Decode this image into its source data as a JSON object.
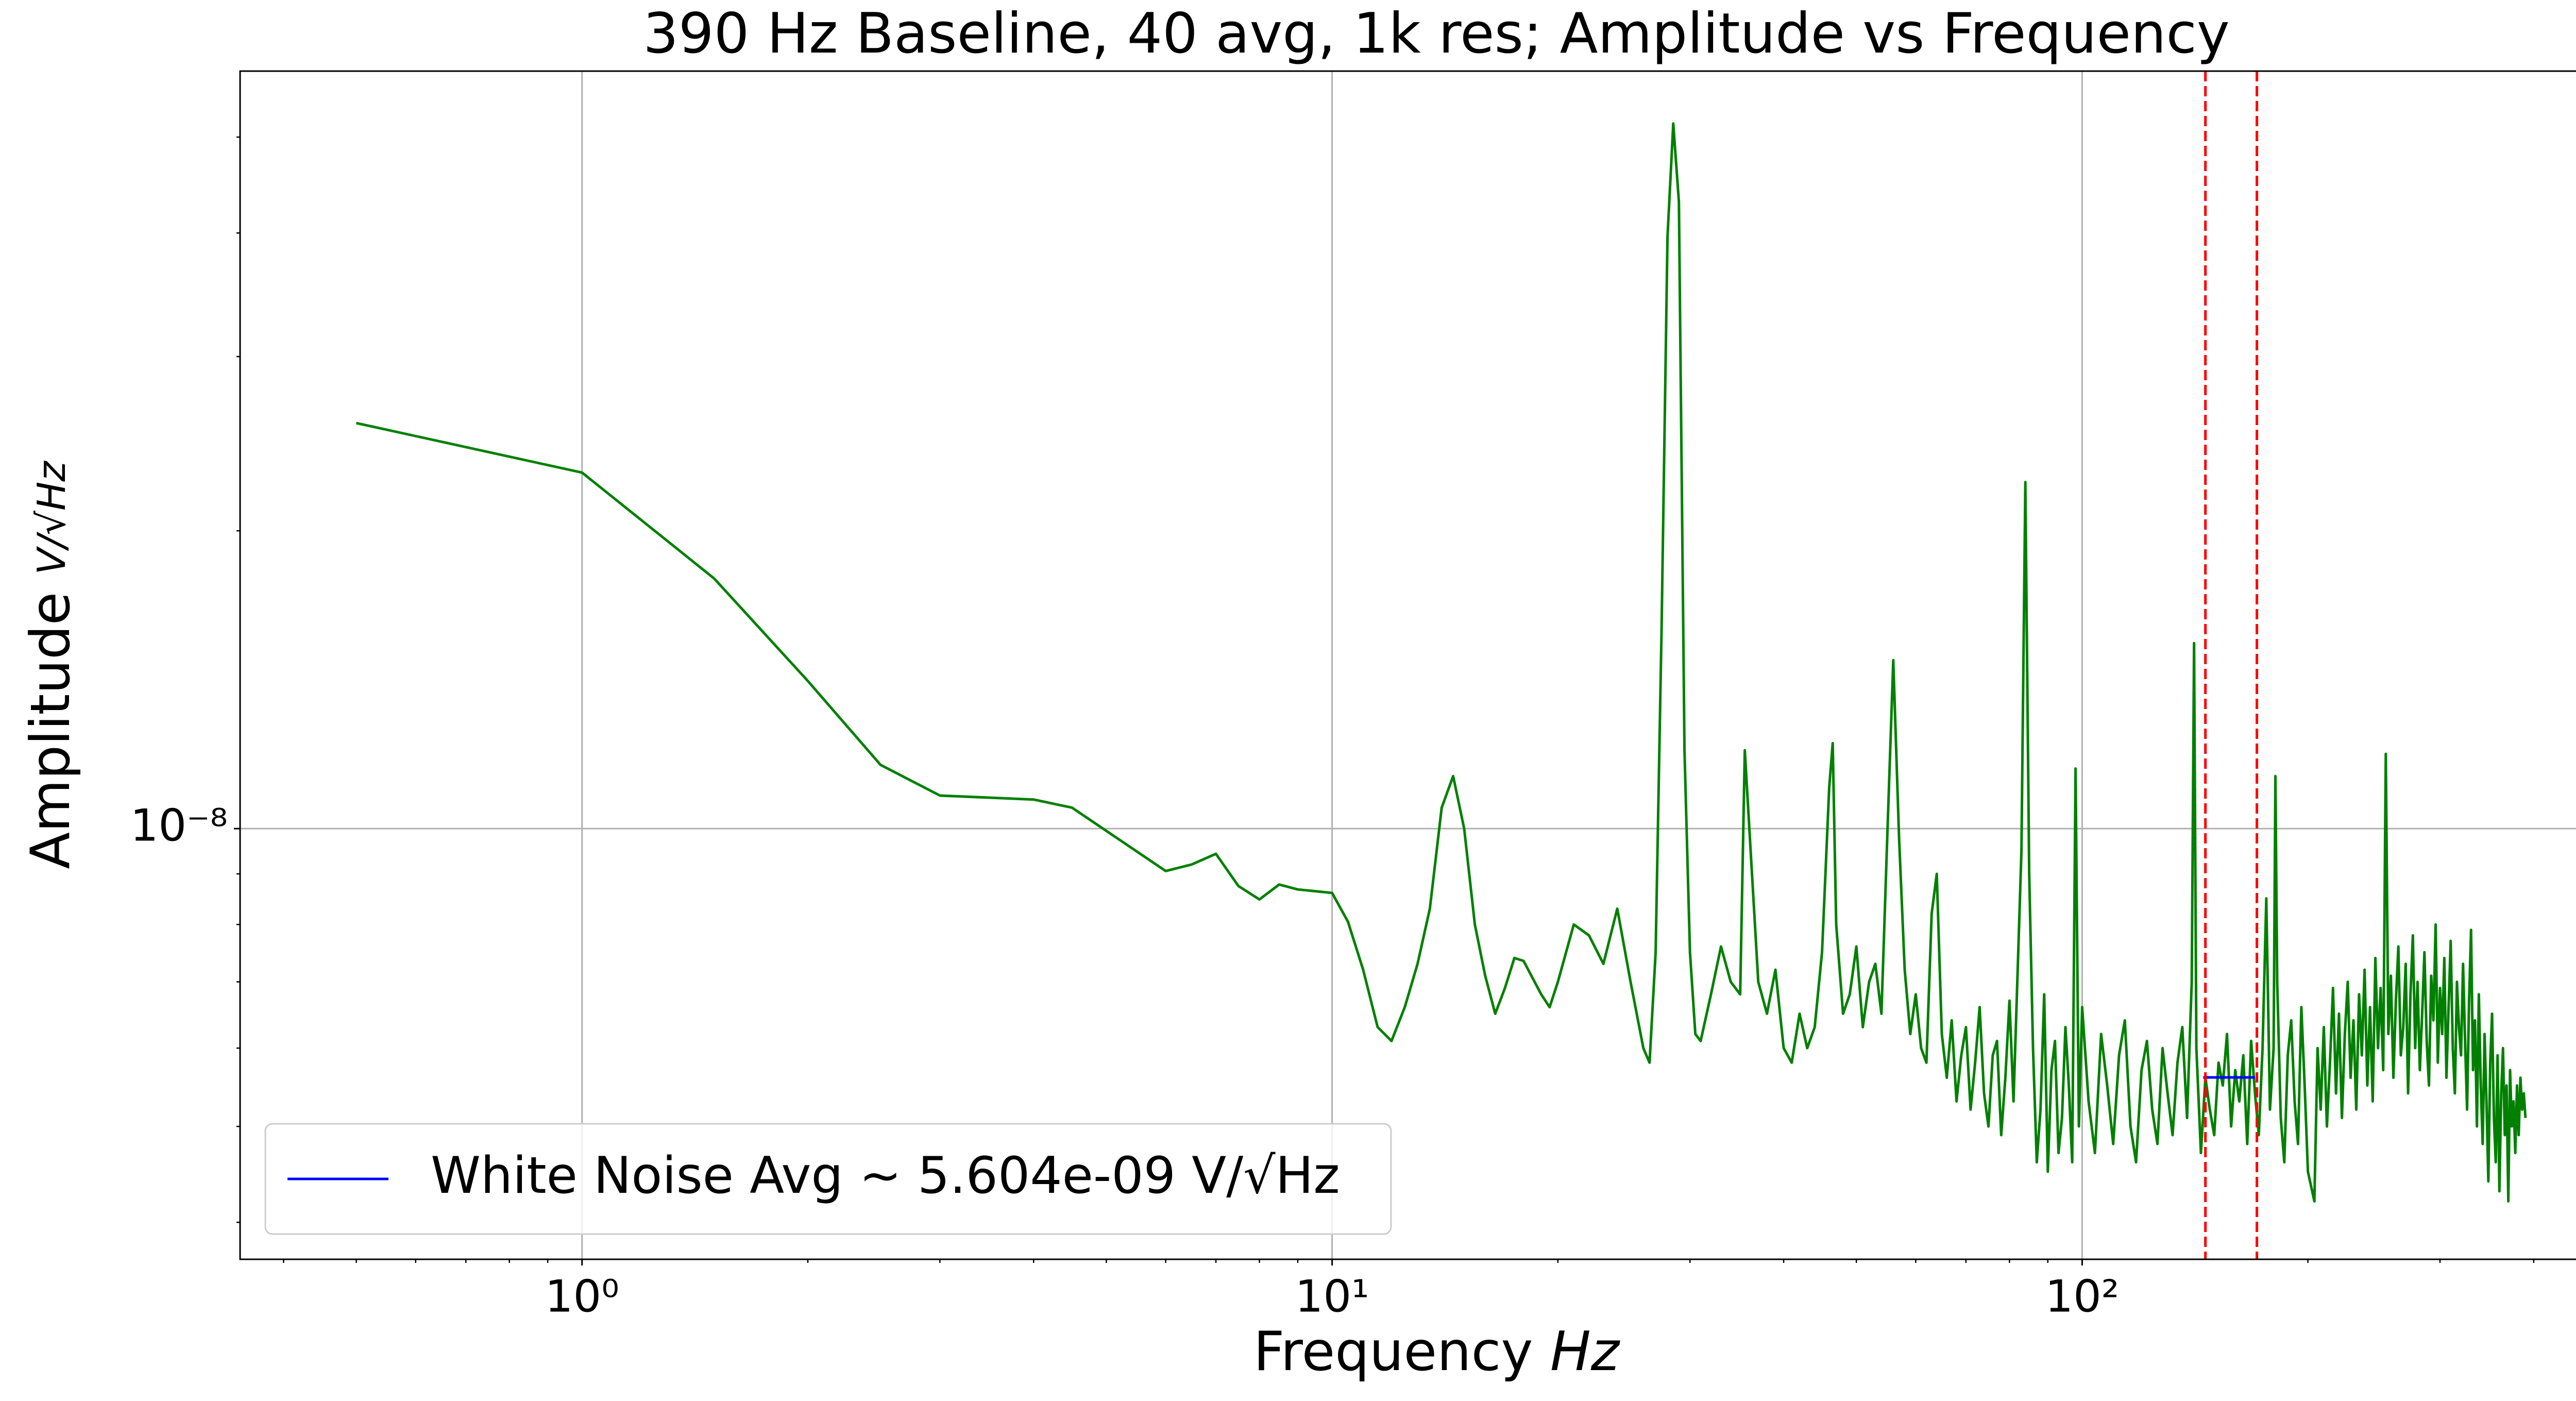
{
  "chart_data": {
    "type": "line",
    "title": "390 Hz Baseline, 40 avg, 1k res; Amplitude vs Frequency",
    "xlabel": "Frequency",
    "xlabel_unit": "Hz",
    "ylabel": "Amplitude",
    "ylabel_unit": "V/√Hz",
    "xscale": "log",
    "yscale": "log",
    "xlim": [
      0.35,
      542
    ],
    "ylim": [
      3.67e-09,
      5.83e-08
    ],
    "xticks": [
      {
        "value": 1,
        "label": "10⁰"
      },
      {
        "value": 10,
        "label": "10¹"
      },
      {
        "value": 100,
        "label": "10²"
      }
    ],
    "yticks": [
      {
        "value": 1e-08,
        "label": "10⁻⁸"
      }
    ],
    "xminor_ticks": [
      0.4,
      0.5,
      0.6,
      0.7,
      0.8,
      0.9,
      2,
      3,
      4,
      5,
      6,
      7,
      8,
      9,
      20,
      30,
      40,
      50,
      60,
      70,
      80,
      90,
      200,
      300,
      400,
      500
    ],
    "yminor_ticks": [
      4e-09,
      5e-09,
      6e-09,
      7e-09,
      8e-09,
      9e-09,
      2e-08,
      3e-08,
      4e-08,
      5e-08
    ],
    "grid": true,
    "legend_loc": "lower left",
    "vlines": [
      146,
      171
    ],
    "vline_color": "#ff0000",
    "series": [
      {
        "color": "#008000",
        "x": [
          0.5,
          1,
          1.5,
          2,
          2.5,
          3,
          4,
          4.5,
          6,
          6.5,
          7,
          7.5,
          8,
          8.5,
          9,
          10,
          10.5,
          11,
          11.5,
          12,
          12.5,
          13,
          13.5,
          14,
          14.5,
          15,
          15.5,
          16,
          16.5,
          17,
          17.5,
          18,
          19,
          19.5,
          20,
          21,
          22,
          23,
          24,
          25,
          26,
          26.5,
          27,
          27.5,
          28,
          28.5,
          29,
          29.5,
          30,
          30.5,
          31,
          32,
          33,
          34,
          35,
          35.5,
          37,
          38,
          39,
          40,
          41,
          42,
          43,
          44,
          45,
          46,
          46.5,
          47,
          48,
          49,
          50,
          51,
          52,
          53,
          54,
          55,
          56,
          57,
          58,
          59,
          60,
          61,
          62,
          63,
          64,
          65,
          66,
          67,
          68,
          69,
          70,
          71,
          72,
          73,
          74,
          75,
          76,
          77,
          78,
          79,
          80,
          81,
          82,
          83,
          84,
          85,
          86,
          87,
          88,
          89,
          90,
          91,
          92,
          93,
          94,
          95,
          96,
          97,
          98,
          99,
          100,
          102,
          104,
          106,
          108,
          110,
          112,
          114,
          116,
          118,
          120,
          122,
          124,
          126,
          128,
          130,
          132,
          134,
          136,
          138,
          140,
          141,
          142,
          144,
          146,
          148,
          150,
          152,
          154,
          156,
          158,
          160,
          162,
          164,
          166,
          168,
          170,
          172,
          174,
          176,
          178,
          180,
          181,
          182,
          184,
          186,
          188,
          190,
          192,
          194,
          196,
          198,
          200,
          204,
          206,
          208,
          210,
          212,
          214,
          216,
          218,
          220,
          222,
          224,
          226,
          228,
          230,
          232,
          234,
          236,
          238,
          240,
          242,
          244,
          246,
          248,
          250,
          252,
          254,
          256,
          258,
          260,
          262,
          264,
          266,
          268,
          270,
          272,
          274,
          276,
          278,
          280,
          282,
          284,
          286,
          288,
          290,
          292,
          294,
          296,
          298,
          300,
          302,
          304,
          306,
          308,
          310,
          312,
          314,
          316,
          318,
          320,
          322,
          324,
          326,
          328,
          330,
          332,
          334,
          336,
          338,
          340,
          342,
          344,
          346,
          348,
          350,
          352,
          354,
          356,
          358,
          360,
          362,
          364,
          366,
          368,
          370,
          372,
          374,
          376,
          378,
          380,
          382,
          384,
          386,
          388,
          390
        ],
        "values": [
          2.57e-08,
          2.29e-08,
          1.79e-08,
          1.41e-08,
          1.16e-08,
          1.08e-08,
          1.07e-08,
          1.05e-08,
          9.06e-09,
          9.2e-09,
          9.43e-09,
          8.75e-09,
          8.48e-09,
          8.78e-09,
          8.68e-09,
          8.61e-09,
          8.05e-09,
          7.2e-09,
          6.3e-09,
          6.1e-09,
          6.6e-09,
          7.3e-09,
          8.3e-09,
          1.05e-08,
          1.13e-08,
          1e-08,
          8e-09,
          7.1e-09,
          6.5e-09,
          6.9e-09,
          7.4e-09,
          7.35e-09,
          6.8e-09,
          6.6e-09,
          7e-09,
          8e-09,
          7.8e-09,
          7.3e-09,
          8.3e-09,
          7e-09,
          6e-09,
          5.8e-09,
          7.5e-09,
          1.6e-08,
          3.96e-08,
          5.16e-08,
          4.3e-08,
          1.2e-08,
          7.5e-09,
          6.2e-09,
          6.1e-09,
          6.8e-09,
          7.6e-09,
          7e-09,
          6.8e-09,
          1.2e-08,
          7e-09,
          6.5e-09,
          7.2e-09,
          6e-09,
          5.8e-09,
          6.5e-09,
          6e-09,
          6.3e-09,
          7.5e-09,
          1.1e-08,
          1.22e-08,
          8e-09,
          6.5e-09,
          6.8e-09,
          7.6e-09,
          6.3e-09,
          7e-09,
          7.3e-09,
          6.5e-09,
          9.9e-09,
          1.48e-08,
          9.8e-09,
          7.2e-09,
          6.2e-09,
          6.8e-09,
          6e-09,
          5.8e-09,
          8.2e-09,
          9e-09,
          6.2e-09,
          5.6e-09,
          6.4e-09,
          5.3e-09,
          5.9e-09,
          6.3e-09,
          5.2e-09,
          5.8e-09,
          6.6e-09,
          5.4e-09,
          5e-09,
          5.9e-09,
          6.1e-09,
          4.9e-09,
          5.6e-09,
          6.7e-09,
          5.3e-09,
          7.1e-09,
          9.5e-09,
          2.24e-08,
          9e-09,
          6e-09,
          4.6e-09,
          5.2e-09,
          6.8e-09,
          4.5e-09,
          5.7e-09,
          6.1e-09,
          4.7e-09,
          5.1e-09,
          6.3e-09,
          5.5e-09,
          4.6e-09,
          1.15e-08,
          5e-09,
          6.6e-09,
          5.3e-09,
          4.7e-09,
          6.2e-09,
          5.5e-09,
          4.8e-09,
          5.9e-09,
          6.4e-09,
          5e-09,
          4.6e-09,
          5.7e-09,
          6.1e-09,
          5.2e-09,
          4.8e-09,
          6e-09,
          5.4e-09,
          4.9e-09,
          5.8e-09,
          6.3e-09,
          5.1e-09,
          7e-09,
          1.54e-08,
          6e-09,
          4.7e-09,
          5.6e-09,
          5.2e-09,
          4.9e-09,
          5.8e-09,
          5.5e-09,
          6.2e-09,
          5e-09,
          5.7e-09,
          5.3e-09,
          5.9e-09,
          4.8e-09,
          6.1e-09,
          5.4e-09,
          4.9e-09,
          6e-09,
          8.5e-09,
          5.2e-09,
          6e-09,
          1.13e-08,
          7e-09,
          5.1e-09,
          4.6e-09,
          5.9e-09,
          6.4e-09,
          5.3e-09,
          4.8e-09,
          6.6e-09,
          5.5e-09,
          4.5e-09,
          4.2e-09,
          6e-09,
          5.2e-09,
          6.3e-09,
          5e-09,
          5.8e-09,
          6.9e-09,
          5.4e-09,
          6.5e-09,
          5.1e-09,
          6.2e-09,
          7e-09,
          5.6e-09,
          6.4e-09,
          5.2e-09,
          6.8e-09,
          5.9e-09,
          7.2e-09,
          5.5e-09,
          6.6e-09,
          5.3e-09,
          7.4e-09,
          6e-09,
          6.9e-09,
          5.7e-09,
          1.19e-08,
          6.2e-09,
          7.1e-09,
          5.6e-09,
          6.7e-09,
          7.6e-09,
          5.9e-09,
          6.3e-09,
          7.3e-09,
          5.4e-09,
          6.8e-09,
          7.8e-09,
          6e-09,
          7e-09,
          5.7e-09,
          6.5e-09,
          7.5e-09,
          6.1e-09,
          5.5e-09,
          7.1e-09,
          6.4e-09,
          8e-09,
          5.8e-09,
          6.9e-09,
          6.2e-09,
          7.4e-09,
          5.6e-09,
          6.6e-09,
          7.7e-09,
          6e-09,
          5.4e-09,
          7e-09,
          6.3e-09,
          5.9e-09,
          7.3e-09,
          6.1e-09,
          5.2e-09,
          6.7e-09,
          7.9e-09,
          5.7e-09,
          6.4e-09,
          5e-09,
          6.8e-09,
          5.5e-09,
          4.8e-09,
          6.2e-09,
          5.3e-09,
          4.4e-09,
          5.8e-09,
          6.5e-09,
          5.1e-09,
          4.6e-09,
          5.9e-09,
          4.3e-09,
          5.4e-09,
          6e-09,
          4.9e-09,
          5.5e-09,
          4.2e-09,
          5.7e-09,
          5e-09,
          5.3e-09,
          4.7e-09,
          5.5e-09,
          4.9e-09,
          5.6e-09,
          5.2e-09,
          5.4e-09,
          5.1e-09
        ]
      },
      {
        "name": "White Noise Avg ~ 5.604e-09 V/√Hz",
        "color": "#0000ff",
        "x": [
          145,
          170
        ],
        "values": [
          5.604e-09,
          5.604e-09
        ]
      }
    ]
  }
}
